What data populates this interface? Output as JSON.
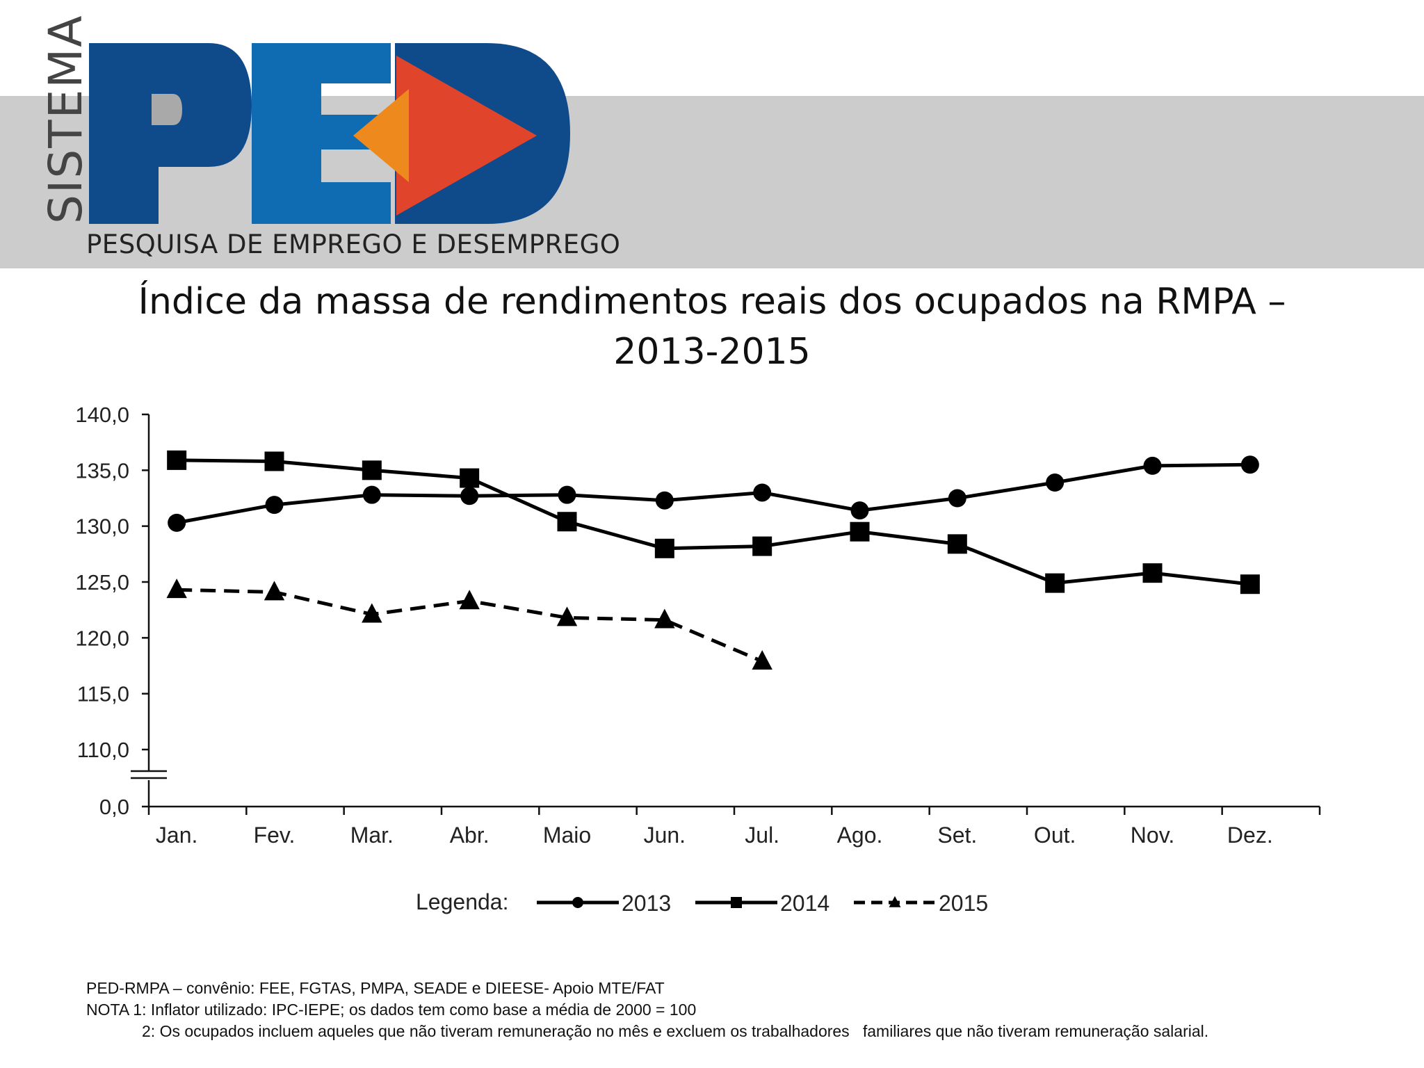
{
  "logo": {
    "sistema": "SISTEMA",
    "letters": "PED",
    "subtitle": "PESQUISA DE EMPREGO E DESEMPREGO",
    "colors": {
      "blue": "#0f4a8a",
      "orange": "#ee8a1d",
      "red": "#e0452b",
      "gray": "#a9a9a9"
    }
  },
  "title": {
    "line1": "Índice da massa de rendimentos reais dos ocupados na RMPA –",
    "line2": "2013-2015"
  },
  "chart_data": {
    "type": "line",
    "categories": [
      "Jan.",
      "Fev.",
      "Mar.",
      "Abr.",
      "Maio",
      "Jun.",
      "Jul.",
      "Ago.",
      "Set.",
      "Out.",
      "Nov.",
      "Dez."
    ],
    "yticks": [
      "140,0",
      "135,0",
      "130,0",
      "125,0",
      "120,0",
      "115,0",
      "110,0",
      "0,0"
    ],
    "ylim": [
      110,
      140
    ],
    "axis_break": true,
    "grid": false,
    "legend_label": "Legenda:",
    "legend_position": "bottom",
    "series": [
      {
        "name": "2013",
        "marker": "circle",
        "dash": "solid",
        "values": [
          130.3,
          131.9,
          132.8,
          132.7,
          132.8,
          132.3,
          133.0,
          131.4,
          132.5,
          133.9,
          135.4,
          135.5
        ]
      },
      {
        "name": "2014",
        "marker": "square",
        "dash": "solid",
        "values": [
          135.9,
          135.8,
          135.0,
          134.3,
          130.4,
          128.0,
          128.2,
          129.5,
          128.4,
          124.9,
          125.8,
          124.8
        ]
      },
      {
        "name": "2015",
        "marker": "triangle",
        "dash": "dashed",
        "values": [
          124.3,
          124.1,
          122.1,
          123.3,
          121.8,
          121.6,
          117.9,
          null,
          null,
          null,
          null,
          null
        ]
      }
    ]
  },
  "footnotes": {
    "source": "PED-RMPA – convênio: FEE, FGTAS, PMPA, SEADE e DIEESE- Apoio MTE/FAT",
    "note1": "NOTA 1: Inflator utilizado: IPC-IEPE; os dados tem como base a média de 2000 = 100",
    "note2": "2: Os ocupados incluem aqueles que não tiveram remuneração no mês e excluem os trabalhadores   familiares que não tiveram remuneração salarial."
  }
}
